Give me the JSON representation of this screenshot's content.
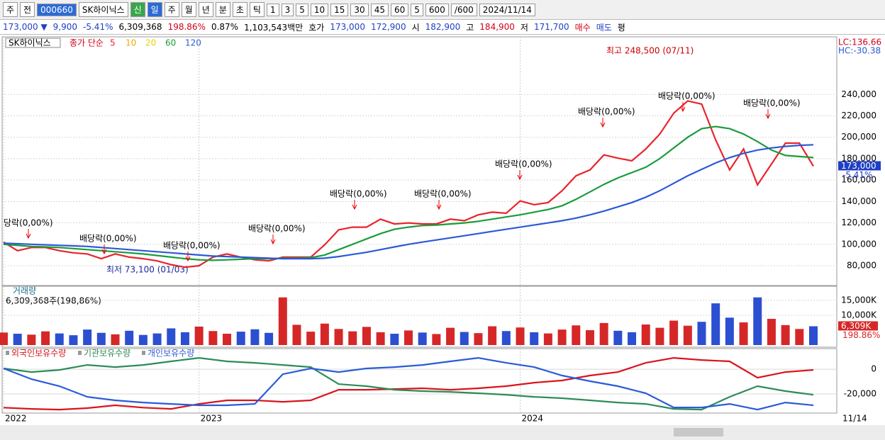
{
  "toolbar": [
    {
      "text": "주"
    },
    {
      "text": "전"
    },
    {
      "text": "000660",
      "active": true
    },
    {
      "text": "SK하이닉스"
    },
    {
      "text": "신",
      "green": true
    },
    {
      "text": "일",
      "active": true
    },
    {
      "text": "주"
    },
    {
      "text": "월"
    },
    {
      "text": "년"
    },
    {
      "text": "분"
    },
    {
      "text": "초"
    },
    {
      "text": "틱"
    },
    {
      "text": "1"
    },
    {
      "text": "3"
    },
    {
      "text": "5"
    },
    {
      "text": "10"
    },
    {
      "text": "15"
    },
    {
      "text": "30"
    },
    {
      "text": "45"
    },
    {
      "text": "60"
    },
    {
      "text": "5"
    },
    {
      "text": "600"
    },
    {
      "text": "/600"
    },
    {
      "text": "2024/11/14"
    }
  ],
  "quote": [
    {
      "text": "173,000 ▼",
      "color": "#1f3fc4"
    },
    {
      "text": "9,900",
      "color": "#1f3fc4"
    },
    {
      "text": "-5.41%",
      "color": "#1f3fc4"
    },
    {
      "text": "6,309,368",
      "color": "#000"
    },
    {
      "text": "198.86%",
      "color": "#d0021b"
    },
    {
      "text": "0.87%",
      "color": "#000"
    },
    {
      "text": "1,103,543백만",
      "color": "#000"
    },
    {
      "text": "호가",
      "color": "#000"
    },
    {
      "text": "173,000",
      "color": "#1f3fc4"
    },
    {
      "text": "172,900",
      "color": "#1f3fc4"
    },
    {
      "text": "시",
      "color": "#000"
    },
    {
      "text": "182,900",
      "color": "#1f3fc4"
    },
    {
      "text": "고",
      "color": "#000"
    },
    {
      "text": "184,900",
      "color": "#d0021b"
    },
    {
      "text": "저",
      "color": "#000"
    },
    {
      "text": "171,700",
      "color": "#1f3fc4"
    },
    {
      "text": "매수",
      "color": "#d0021b"
    },
    {
      "text": "매도",
      "color": "#1f3fc4"
    },
    {
      "text": "평",
      "color": "#000"
    }
  ],
  "panel": {
    "name": "SK하이닉스",
    "legend": "종가 단순",
    "ma": [
      {
        "text": "5",
        "color": "#e8242c"
      },
      {
        "text": "10",
        "color": "#f2a800"
      },
      {
        "text": "20",
        "color": "#e6d300"
      },
      {
        "text": "60",
        "color": "#1a9c3a"
      },
      {
        "text": "120",
        "color": "#2c5ad6"
      }
    ],
    "lc": "LC:136.66",
    "hc": "HC:-30.38",
    "price_tag": "173,000",
    "change_tag": "-5.41%",
    "date_end": "11/14",
    "annotations": {
      "high": "최고 248,500 (07/11)",
      "low": "최저 73,100 (01/03)",
      "dividends": [
        "당락(0,00%)",
        "배당락(0,00%)",
        "배당락(0,00%)",
        "배당락(0,00%)",
        "배당락(0,00%)",
        "배당락(0,00%)",
        "배당락(0,00%)",
        "배당락(0,00%)",
        "배당락(0,00%)",
        "배당락(0,00%)"
      ]
    }
  },
  "chart_data": [
    {
      "type": "line",
      "categories": [
        "2022",
        null,
        null,
        null,
        null,
        null,
        null,
        null,
        null,
        null,
        null,
        null,
        null,
        null,
        "2023",
        null,
        null,
        null,
        null,
        null,
        null,
        null,
        null,
        null,
        null,
        null,
        null,
        null,
        null,
        null,
        null,
        null,
        null,
        null,
        null,
        null,
        null,
        "2024",
        null,
        null,
        null,
        null,
        null,
        null,
        null,
        null,
        null,
        null,
        null,
        null,
        null,
        null,
        null,
        null,
        null,
        null,
        null,
        null,
        null
      ],
      "series": [
        {
          "name": "종가",
          "color": "#e8242c",
          "values": [
            102000,
            94000,
            97000,
            97000,
            94000,
            92000,
            91000,
            86500,
            91000,
            88000,
            86500,
            84500,
            81000,
            78500,
            80000,
            88000,
            91000,
            88000,
            85500,
            84500,
            88000,
            88000,
            88000,
            99500,
            113500,
            116000,
            116000,
            123500,
            119000,
            120000,
            119000,
            119000,
            123500,
            122000,
            127500,
            130000,
            129000,
            140500,
            137000,
            139000,
            150000,
            164000,
            169500,
            183500,
            180500,
            178000,
            189000,
            203000,
            222500,
            234000,
            231000,
            197500,
            169500,
            189000,
            155500,
            175000,
            194500,
            194500,
            173000
          ]
        },
        {
          "name": "60",
          "color": "#1a9c3a",
          "values": [
            100000,
            99000,
            98000,
            97500,
            97000,
            96000,
            95000,
            94000,
            93000,
            92000,
            91000,
            89500,
            88000,
            86500,
            85500,
            85000,
            85500,
            86000,
            86500,
            86500,
            87000,
            87000,
            87500,
            90000,
            95000,
            100000,
            105000,
            110000,
            114000,
            116000,
            117500,
            118000,
            119000,
            120000,
            121500,
            123500,
            125500,
            127500,
            130000,
            132500,
            136000,
            142000,
            149000,
            156000,
            162000,
            167000,
            172000,
            180000,
            190000,
            200000,
            208000,
            210000,
            208000,
            203000,
            196000,
            188000,
            183000,
            182000,
            181000
          ]
        },
        {
          "name": "120",
          "color": "#2c5ad6",
          "values": [
            101000,
            100500,
            100000,
            99500,
            99000,
            98500,
            98000,
            97000,
            96000,
            95000,
            94000,
            93000,
            92000,
            91000,
            90000,
            89000,
            88500,
            88000,
            87500,
            87000,
            86500,
            86500,
            86500,
            87000,
            88500,
            90500,
            92500,
            95000,
            97500,
            100000,
            102000,
            104000,
            106000,
            108000,
            110000,
            112000,
            114000,
            116000,
            118000,
            120000,
            122000,
            124500,
            127500,
            131000,
            135000,
            139000,
            144000,
            150000,
            157000,
            164000,
            170000,
            176000,
            181000,
            185000,
            188000,
            190000,
            191500,
            192500,
            193000
          ]
        }
      ],
      "ylim": [
        62100,
        291850
      ],
      "yticks": [
        {
          "value": 80000,
          "label": "80,000"
        },
        {
          "value": 100000,
          "label": "100,000"
        },
        {
          "value": 120000,
          "label": "120,000"
        },
        {
          "value": 140000,
          "label": "140,000"
        },
        {
          "value": 160000,
          "label": "160,000"
        },
        {
          "value": 180000,
          "label": "180,000"
        },
        {
          "value": 200000,
          "label": "200,000"
        },
        {
          "value": 220000,
          "label": "220,000"
        },
        {
          "value": 240000,
          "label": "240,000"
        }
      ],
      "grid": true
    },
    {
      "type": "bar",
      "title": "거래량",
      "subtitle": "6,309,368주(198,86%)",
      "values": [
        4200,
        3800,
        3500,
        4600,
        3900,
        3300,
        5200,
        4100,
        3600,
        4800,
        3400,
        3900,
        5600,
        4300,
        6200,
        4700,
        3800,
        4500,
        5300,
        4100,
        16000,
        6800,
        4500,
        7200,
        5400,
        4600,
        6100,
        4300,
        3800,
        4900,
        4200,
        3700,
        5800,
        4400,
        4000,
        6300,
        4700,
        5900,
        4300,
        3900,
        5200,
        6600,
        5000,
        7400,
        4800,
        4300,
        6900,
        5800,
        8200,
        6500,
        7800,
        14000,
        9200,
        7600,
        16000,
        8800,
        6700,
        5400,
        6309
      ],
      "up_color": "#d62728",
      "down_color": "#2c4fd1",
      "ylim": [
        0,
        19500
      ],
      "yticks": [
        {
          "value": 10000,
          "label": "10,000K"
        },
        {
          "value": 15000,
          "label": "15,000K"
        }
      ],
      "value_tag": "6,309K",
      "ratio_tag": "198.86%"
    },
    {
      "type": "line",
      "series": [
        {
          "name": "외국인보유수량",
          "color": "#d9141c",
          "values": [
            -31000,
            -32000,
            -32600,
            -31400,
            -29100,
            -31000,
            -32000,
            -28000,
            -25100,
            -25100,
            -26300,
            -25100,
            -16600,
            -16600,
            -16000,
            -15400,
            -16600,
            -15400,
            -13700,
            -10900,
            -9100,
            -5100,
            -2300,
            5100,
            9100,
            7400,
            6300,
            -6900,
            -2300,
            -600
          ]
        },
        {
          "name": "기관보유수량",
          "color": "#2e8b57",
          "values": [
            600,
            -2300,
            -600,
            3400,
            1700,
            3400,
            6300,
            9100,
            6300,
            5100,
            3400,
            1700,
            -12000,
            -13700,
            -16600,
            -17700,
            -18300,
            -19400,
            -20600,
            -22300,
            -23400,
            -25100,
            -26900,
            -28000,
            -32000,
            -32600,
            -22300,
            -13700,
            -17700,
            -20600
          ]
        },
        {
          "name": "개인보유수량",
          "color": "#2a5bd7",
          "values": [
            600,
            -8000,
            -13700,
            -22300,
            -25100,
            -26900,
            -28000,
            -29100,
            -29100,
            -28000,
            -4000,
            600,
            -2300,
            600,
            1700,
            3400,
            6300,
            9100,
            5100,
            1700,
            -5100,
            -9700,
            -13700,
            -19400,
            -30900,
            -30900,
            -28000,
            -32600,
            -26900,
            -29100
          ]
        }
      ],
      "ylim": [
        -35400,
        14900
      ],
      "yticks": [
        0,
        {
          "value": -20000,
          "label": "-20,000"
        }
      ]
    }
  ]
}
